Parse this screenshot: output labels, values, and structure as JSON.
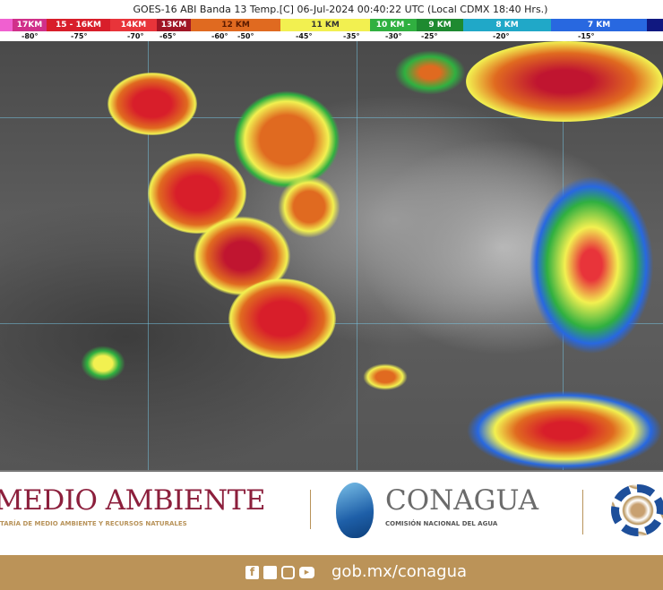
{
  "header": {
    "title": "GOES-16 ABI Banda 13 Temp.[C] 06-Jul-2024 00:40:22 UTC (Local CDMX  18:40 Hrs.)"
  },
  "legend": {
    "bands": [
      {
        "label": "",
        "color": "#f060d0"
      },
      {
        "label": "17KM",
        "color": "#d0308a"
      },
      {
        "label": "15 - 16KM",
        "color": "#d81e2a"
      },
      {
        "label": "14KM",
        "color": "#e8343a"
      },
      {
        "label": "13KM",
        "color": "#a01525"
      },
      {
        "label": "12 KM",
        "color": "#e06a20"
      },
      {
        "label": "11 KM",
        "color": "#f2f050"
      },
      {
        "label": "10 KM -",
        "color": "#30b040"
      },
      {
        "label": "9 KM",
        "color": "#1e8a30"
      },
      {
        "label": "8 KM",
        "color": "#20a8c8"
      },
      {
        "label": "7 KM",
        "color": "#2868e0"
      },
      {
        "label": "",
        "color": "#101880"
      }
    ],
    "temps": [
      "-80°",
      "-75°",
      "-70°",
      "-65°",
      "-60°",
      "-50°",
      "-45°",
      "-35°",
      "-30°",
      "-25°",
      "-20°",
      "-15°"
    ]
  },
  "logos": {
    "semarnat_title": "MEDIO AMBIENTE",
    "semarnat_sub": "TARÍA DE MEDIO AMBIENTE Y RECURSOS NATURALES",
    "conagua_title": "CONAGUA",
    "conagua_sub": "COMISIÓN NACIONAL DEL AGUA"
  },
  "footer": {
    "url": "gob.mx/conagua",
    "social": [
      "facebook-icon",
      "twitter-icon",
      "instagram-icon",
      "youtube-icon"
    ]
  }
}
